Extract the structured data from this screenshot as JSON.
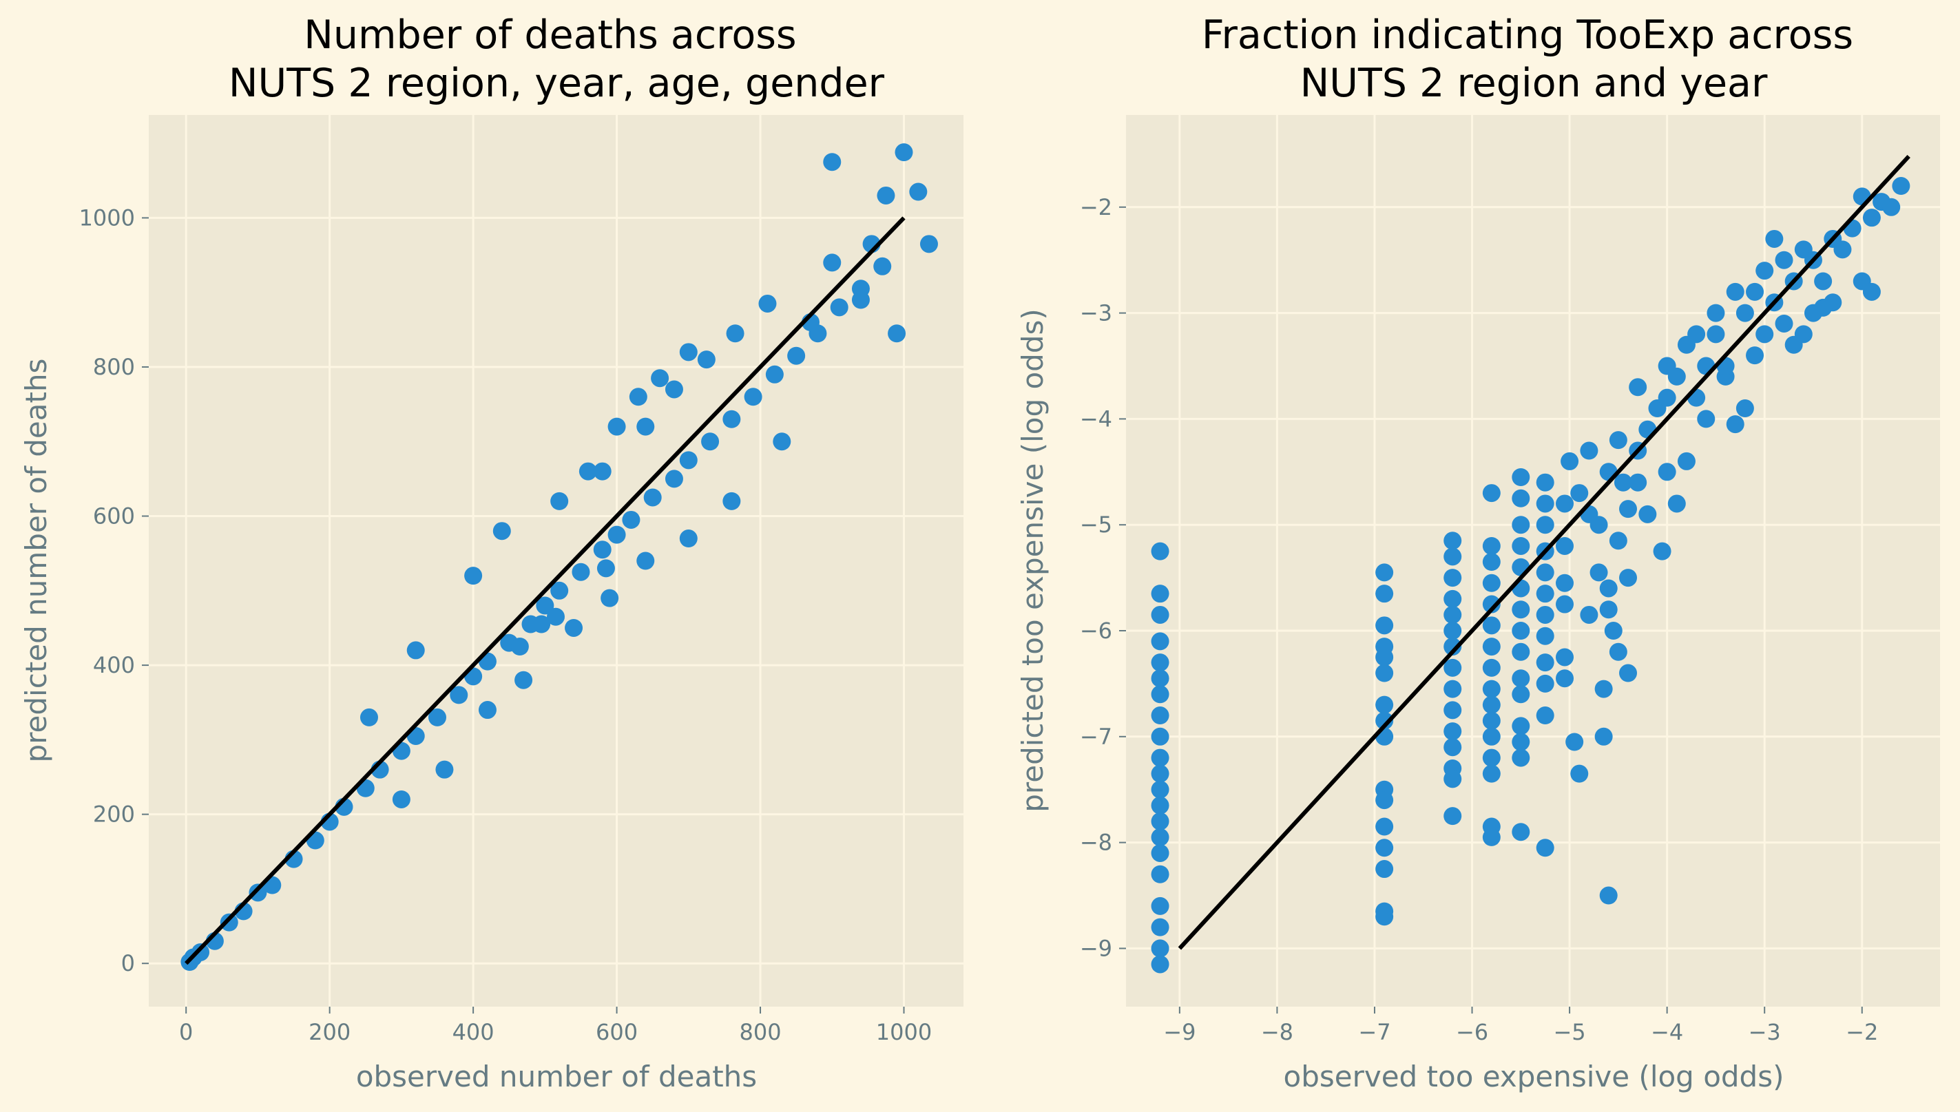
{
  "colors": {
    "figure_background": "#fdf6e3",
    "axes_background": "#eee8d5",
    "grid": "#fdf6e3",
    "points": "#268bd2",
    "line": "#000000",
    "axis_text": "#657b83"
  },
  "chart_data": [
    {
      "type": "scatter",
      "title": "Number of deaths across\nNUTS 2 region, year, age, gender",
      "xlabel": "observed number of deaths",
      "ylabel": "predicted number of deaths",
      "xlim": [
        -52,
        1083
      ],
      "ylim": [
        -58,
        1138
      ],
      "xticks": [
        0,
        200,
        400,
        600,
        800,
        1000
      ],
      "yticks": [
        0,
        200,
        400,
        600,
        800,
        1000
      ],
      "xtick_labels": [
        "0",
        "200",
        "400",
        "600",
        "800",
        "1000"
      ],
      "ytick_labels": [
        "0",
        "200",
        "400",
        "600",
        "800",
        "1000"
      ],
      "grid": true,
      "reference_line": {
        "x": [
          0,
          1000
        ],
        "y": [
          0,
          1000
        ]
      },
      "points": [
        [
          5,
          2
        ],
        [
          10,
          8
        ],
        [
          20,
          15
        ],
        [
          40,
          30
        ],
        [
          60,
          55
        ],
        [
          80,
          70
        ],
        [
          100,
          95
        ],
        [
          120,
          105
        ],
        [
          150,
          140
        ],
        [
          180,
          165
        ],
        [
          200,
          190
        ],
        [
          220,
          210
        ],
        [
          250,
          235
        ],
        [
          270,
          260
        ],
        [
          300,
          285
        ],
        [
          320,
          305
        ],
        [
          350,
          330
        ],
        [
          380,
          360
        ],
        [
          400,
          385
        ],
        [
          420,
          405
        ],
        [
          450,
          430
        ],
        [
          480,
          455
        ],
        [
          500,
          480
        ],
        [
          520,
          500
        ],
        [
          550,
          525
        ],
        [
          580,
          555
        ],
        [
          600,
          575
        ],
        [
          620,
          595
        ],
        [
          650,
          625
        ],
        [
          680,
          650
        ],
        [
          700,
          675
        ],
        [
          730,
          700
        ],
        [
          760,
          730
        ],
        [
          790,
          760
        ],
        [
          820,
          790
        ],
        [
          850,
          815
        ],
        [
          880,
          845
        ],
        [
          910,
          880
        ],
        [
          940,
          905
        ],
        [
          970,
          935
        ],
        [
          255,
          330
        ],
        [
          320,
          420
        ],
        [
          400,
          520
        ],
        [
          440,
          580
        ],
        [
          520,
          620
        ],
        [
          560,
          660
        ],
        [
          600,
          720
        ],
        [
          630,
          760
        ],
        [
          660,
          785
        ],
        [
          700,
          820
        ],
        [
          300,
          220
        ],
        [
          360,
          260
        ],
        [
          420,
          340
        ],
        [
          470,
          380
        ],
        [
          540,
          450
        ],
        [
          590,
          490
        ],
        [
          640,
          540
        ],
        [
          700,
          570
        ],
        [
          760,
          620
        ],
        [
          830,
          700
        ],
        [
          900,
          1075
        ],
        [
          1000,
          1088
        ],
        [
          975,
          1030
        ],
        [
          1020,
          1035
        ],
        [
          955,
          965
        ],
        [
          990,
          845
        ],
        [
          1035,
          965
        ],
        [
          900,
          940
        ],
        [
          870,
          860
        ],
        [
          940,
          890
        ],
        [
          515,
          465
        ],
        [
          585,
          530
        ],
        [
          465,
          425
        ],
        [
          495,
          455
        ],
        [
          580,
          660
        ],
        [
          640,
          720
        ],
        [
          680,
          770
        ],
        [
          725,
          810
        ],
        [
          765,
          845
        ],
        [
          810,
          885
        ]
      ]
    },
    {
      "type": "scatter",
      "title": "Fraction indicating TooExp across\nNUTS 2 region and year",
      "xlabel": "observed too expensive (log odds)",
      "ylabel": "predicted too expensive (log odds)",
      "xlim": [
        -9.55,
        -1.2
      ],
      "ylim": [
        -9.55,
        -1.13
      ],
      "xticks": [
        -9,
        -8,
        -7,
        -6,
        -5,
        -4,
        -3,
        -2
      ],
      "yticks": [
        -9,
        -8,
        -7,
        -6,
        -5,
        -4,
        -3,
        -2
      ],
      "xtick_labels": [
        "−9",
        "−8",
        "−7",
        "−6",
        "−5",
        "−4",
        "−3",
        "−2"
      ],
      "ytick_labels": [
        "−9",
        "−8",
        "−7",
        "−6",
        "−5",
        "−4",
        "−3",
        "−2"
      ],
      "grid": true,
      "reference_line": {
        "x": [
          -9.0,
          -1.52
        ],
        "y": [
          -9.0,
          -1.52
        ]
      },
      "points": [
        [
          -9.2,
          -5.25
        ],
        [
          -9.2,
          -5.65
        ],
        [
          -9.2,
          -5.85
        ],
        [
          -9.2,
          -6.1
        ],
        [
          -9.2,
          -6.3
        ],
        [
          -9.2,
          -6.45
        ],
        [
          -9.2,
          -6.6
        ],
        [
          -9.2,
          -6.8
        ],
        [
          -9.2,
          -7.0
        ],
        [
          -9.2,
          -7.2
        ],
        [
          -9.2,
          -7.35
        ],
        [
          -9.2,
          -7.5
        ],
        [
          -9.2,
          -7.65
        ],
        [
          -9.2,
          -7.8
        ],
        [
          -9.2,
          -7.95
        ],
        [
          -9.2,
          -8.1
        ],
        [
          -9.2,
          -8.3
        ],
        [
          -9.2,
          -8.6
        ],
        [
          -9.2,
          -8.8
        ],
        [
          -9.2,
          -9.0
        ],
        [
          -9.2,
          -9.15
        ],
        [
          -6.9,
          -5.45
        ],
        [
          -6.9,
          -5.65
        ],
        [
          -6.9,
          -5.95
        ],
        [
          -6.9,
          -6.15
        ],
        [
          -6.9,
          -6.25
        ],
        [
          -6.9,
          -6.4
        ],
        [
          -6.9,
          -6.7
        ],
        [
          -6.9,
          -6.85
        ],
        [
          -6.9,
          -7.0
        ],
        [
          -6.9,
          -7.5
        ],
        [
          -6.9,
          -7.6
        ],
        [
          -6.9,
          -7.85
        ],
        [
          -6.9,
          -8.05
        ],
        [
          -6.9,
          -8.25
        ],
        [
          -6.9,
          -8.65
        ],
        [
          -6.9,
          -8.7
        ],
        [
          -6.2,
          -5.15
        ],
        [
          -6.2,
          -5.3
        ],
        [
          -6.2,
          -5.5
        ],
        [
          -6.2,
          -5.7
        ],
        [
          -6.2,
          -5.85
        ],
        [
          -6.2,
          -6.0
        ],
        [
          -6.2,
          -6.15
        ],
        [
          -6.2,
          -6.35
        ],
        [
          -6.2,
          -6.55
        ],
        [
          -6.2,
          -6.75
        ],
        [
          -6.2,
          -6.95
        ],
        [
          -6.2,
          -7.1
        ],
        [
          -6.2,
          -7.3
        ],
        [
          -6.2,
          -7.4
        ],
        [
          -6.2,
          -7.75
        ],
        [
          -5.8,
          -5.2
        ],
        [
          -5.8,
          -5.35
        ],
        [
          -5.8,
          -5.55
        ],
        [
          -5.8,
          -5.75
        ],
        [
          -5.8,
          -5.95
        ],
        [
          -5.8,
          -6.15
        ],
        [
          -5.8,
          -6.35
        ],
        [
          -5.8,
          -6.55
        ],
        [
          -5.8,
          -6.7
        ],
        [
          -5.8,
          -6.85
        ],
        [
          -5.8,
          -7.0
        ],
        [
          -5.8,
          -7.2
        ],
        [
          -5.8,
          -7.35
        ],
        [
          -5.8,
          -7.85
        ],
        [
          -5.8,
          -7.95
        ],
        [
          -5.8,
          -4.7
        ],
        [
          -5.5,
          -4.55
        ],
        [
          -5.5,
          -4.75
        ],
        [
          -5.5,
          -5.0
        ],
        [
          -5.5,
          -5.2
        ],
        [
          -5.5,
          -5.4
        ],
        [
          -5.5,
          -5.6
        ],
        [
          -5.5,
          -5.8
        ],
        [
          -5.5,
          -6.0
        ],
        [
          -5.5,
          -6.2
        ],
        [
          -5.5,
          -6.45
        ],
        [
          -5.5,
          -6.6
        ],
        [
          -5.5,
          -6.9
        ],
        [
          -5.5,
          -7.05
        ],
        [
          -5.5,
          -7.2
        ],
        [
          -5.5,
          -7.9
        ],
        [
          -5.25,
          -4.6
        ],
        [
          -5.25,
          -4.8
        ],
        [
          -5.25,
          -5.0
        ],
        [
          -5.25,
          -5.25
        ],
        [
          -5.25,
          -5.45
        ],
        [
          -5.25,
          -5.65
        ],
        [
          -5.25,
          -5.85
        ],
        [
          -5.25,
          -6.05
        ],
        [
          -5.25,
          -6.3
        ],
        [
          -5.25,
          -6.5
        ],
        [
          -5.25,
          -6.8
        ],
        [
          -5.25,
          -8.05
        ],
        [
          -5.05,
          -4.8
        ],
        [
          -5.05,
          -5.2
        ],
        [
          -5.05,
          -5.55
        ],
        [
          -5.05,
          -5.75
        ],
        [
          -5.05,
          -6.25
        ],
        [
          -5.05,
          -6.45
        ],
        [
          -4.95,
          -7.05
        ],
        [
          -4.9,
          -7.35
        ],
        [
          -4.6,
          -8.5
        ],
        [
          -4.65,
          -6.55
        ],
        [
          -4.65,
          -7.0
        ],
        [
          -4.4,
          -6.4
        ],
        [
          -4.9,
          -4.7
        ],
        [
          -4.8,
          -4.9
        ],
        [
          -4.7,
          -5.0
        ],
        [
          -4.6,
          -4.5
        ],
        [
          -4.5,
          -5.15
        ],
        [
          -4.45,
          -4.6
        ],
        [
          -4.4,
          -4.85
        ],
        [
          -4.3,
          -4.3
        ],
        [
          -4.2,
          -4.9
        ],
        [
          -4.05,
          -5.25
        ],
        [
          -4.6,
          -5.6
        ],
        [
          -4.6,
          -5.8
        ],
        [
          -4.55,
          -6.0
        ],
        [
          -4.5,
          -6.2
        ],
        [
          -4.4,
          -5.5
        ],
        [
          -4.7,
          -5.45
        ],
        [
          -4.8,
          -5.85
        ],
        [
          -4.0,
          -4.5
        ],
        [
          -3.9,
          -4.8
        ],
        [
          -3.8,
          -4.4
        ],
        [
          -4.3,
          -3.7
        ],
        [
          -4.1,
          -3.9
        ],
        [
          -4.0,
          -3.5
        ],
        [
          -3.9,
          -3.6
        ],
        [
          -3.8,
          -3.3
        ],
        [
          -3.7,
          -3.8
        ],
        [
          -3.6,
          -4.0
        ],
        [
          -3.5,
          -3.2
        ],
        [
          -3.4,
          -3.6
        ],
        [
          -3.3,
          -4.05
        ],
        [
          -3.2,
          -3.0
        ],
        [
          -3.1,
          -3.4
        ],
        [
          -3.0,
          -3.2
        ],
        [
          -2.9,
          -2.9
        ],
        [
          -2.8,
          -3.1
        ],
        [
          -2.7,
          -2.7
        ],
        [
          -2.6,
          -3.2
        ],
        [
          -2.5,
          -2.5
        ],
        [
          -2.4,
          -2.7
        ],
        [
          -2.3,
          -2.3
        ],
        [
          -2.2,
          -2.4
        ],
        [
          -2.1,
          -2.2
        ],
        [
          -2.0,
          -1.9
        ],
        [
          -1.9,
          -2.1
        ],
        [
          -1.8,
          -1.95
        ],
        [
          -1.7,
          -2.0
        ],
        [
          -1.6,
          -1.8
        ],
        [
          -2.0,
          -2.7
        ],
        [
          -1.9,
          -2.8
        ],
        [
          -2.3,
          -2.9
        ],
        [
          -3.0,
          -2.6
        ],
        [
          -2.9,
          -2.3
        ],
        [
          -3.1,
          -2.8
        ],
        [
          -2.7,
          -3.3
        ],
        [
          -2.5,
          -3.0
        ],
        [
          -3.2,
          -3.9
        ],
        [
          -3.4,
          -3.5
        ],
        [
          -3.6,
          -3.5
        ],
        [
          -4.2,
          -4.1
        ],
        [
          -3.3,
          -2.8
        ],
        [
          -4.8,
          -4.3
        ],
        [
          -5.0,
          -4.4
        ],
        [
          -4.5,
          -4.2
        ],
        [
          -3.7,
          -3.2
        ],
        [
          -3.5,
          -3.0
        ],
        [
          -4.0,
          -3.8
        ],
        [
          -4.3,
          -4.6
        ],
        [
          -2.8,
          -2.5
        ],
        [
          -2.4,
          -2.95
        ],
        [
          -2.6,
          -2.4
        ]
      ]
    }
  ]
}
